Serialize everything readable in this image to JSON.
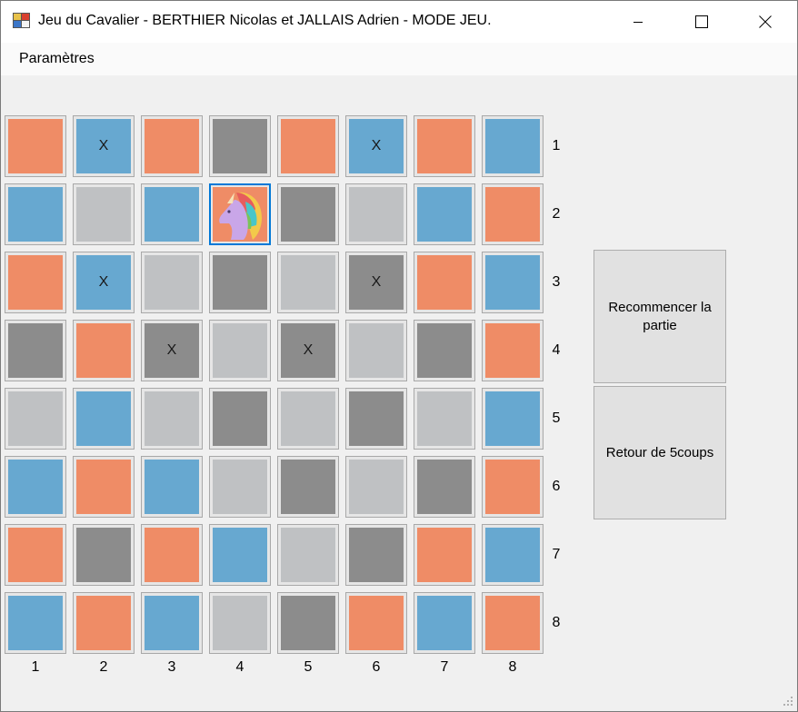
{
  "window": {
    "title": "Jeu du Cavalier - BERTHIER Nicolas et JALLAIS Adrien - MODE JEU."
  },
  "menu": {
    "items": [
      {
        "label": "Paramètres"
      }
    ]
  },
  "colors": {
    "orange": "#ef8c66",
    "blue": "#67a8d0",
    "dark": "#8c8c8c",
    "light": "#bfc1c3",
    "selected_border": "#0078d7"
  },
  "board": {
    "row_labels": [
      "1",
      "2",
      "3",
      "4",
      "5",
      "6",
      "7",
      "8"
    ],
    "col_labels": [
      "1",
      "2",
      "3",
      "4",
      "5",
      "6",
      "7",
      "8"
    ],
    "rows": [
      [
        {
          "c": "orange",
          "t": ""
        },
        {
          "c": "blue",
          "t": "X"
        },
        {
          "c": "orange",
          "t": ""
        },
        {
          "c": "dark",
          "t": ""
        },
        {
          "c": "orange",
          "t": ""
        },
        {
          "c": "blue",
          "t": "X"
        },
        {
          "c": "orange",
          "t": ""
        },
        {
          "c": "blue",
          "t": ""
        }
      ],
      [
        {
          "c": "blue",
          "t": ""
        },
        {
          "c": "light",
          "t": ""
        },
        {
          "c": "blue",
          "t": ""
        },
        {
          "c": "orange",
          "t": "",
          "knight": true
        },
        {
          "c": "dark",
          "t": ""
        },
        {
          "c": "light",
          "t": ""
        },
        {
          "c": "blue",
          "t": ""
        },
        {
          "c": "orange",
          "t": ""
        }
      ],
      [
        {
          "c": "orange",
          "t": ""
        },
        {
          "c": "blue",
          "t": "X"
        },
        {
          "c": "light",
          "t": ""
        },
        {
          "c": "dark",
          "t": ""
        },
        {
          "c": "light",
          "t": ""
        },
        {
          "c": "dark",
          "t": "X"
        },
        {
          "c": "orange",
          "t": ""
        },
        {
          "c": "blue",
          "t": ""
        }
      ],
      [
        {
          "c": "dark",
          "t": ""
        },
        {
          "c": "orange",
          "t": ""
        },
        {
          "c": "dark",
          "t": "X"
        },
        {
          "c": "light",
          "t": ""
        },
        {
          "c": "dark",
          "t": "X"
        },
        {
          "c": "light",
          "t": ""
        },
        {
          "c": "dark",
          "t": ""
        },
        {
          "c": "orange",
          "t": ""
        }
      ],
      [
        {
          "c": "light",
          "t": ""
        },
        {
          "c": "blue",
          "t": ""
        },
        {
          "c": "light",
          "t": ""
        },
        {
          "c": "dark",
          "t": ""
        },
        {
          "c": "light",
          "t": ""
        },
        {
          "c": "dark",
          "t": ""
        },
        {
          "c": "light",
          "t": ""
        },
        {
          "c": "blue",
          "t": ""
        }
      ],
      [
        {
          "c": "blue",
          "t": ""
        },
        {
          "c": "orange",
          "t": ""
        },
        {
          "c": "blue",
          "t": ""
        },
        {
          "c": "light",
          "t": ""
        },
        {
          "c": "dark",
          "t": ""
        },
        {
          "c": "light",
          "t": ""
        },
        {
          "c": "dark",
          "t": ""
        },
        {
          "c": "orange",
          "t": ""
        }
      ],
      [
        {
          "c": "orange",
          "t": ""
        },
        {
          "c": "dark",
          "t": ""
        },
        {
          "c": "orange",
          "t": ""
        },
        {
          "c": "blue",
          "t": ""
        },
        {
          "c": "light",
          "t": ""
        },
        {
          "c": "dark",
          "t": ""
        },
        {
          "c": "orange",
          "t": ""
        },
        {
          "c": "blue",
          "t": ""
        }
      ],
      [
        {
          "c": "blue",
          "t": ""
        },
        {
          "c": "orange",
          "t": ""
        },
        {
          "c": "blue",
          "t": ""
        },
        {
          "c": "light",
          "t": ""
        },
        {
          "c": "dark",
          "t": ""
        },
        {
          "c": "orange",
          "t": ""
        },
        {
          "c": "blue",
          "t": ""
        },
        {
          "c": "orange",
          "t": ""
        }
      ]
    ]
  },
  "buttons": {
    "restart_label": "Recommencer la partie",
    "undo_label": "Retour de 5coups"
  }
}
